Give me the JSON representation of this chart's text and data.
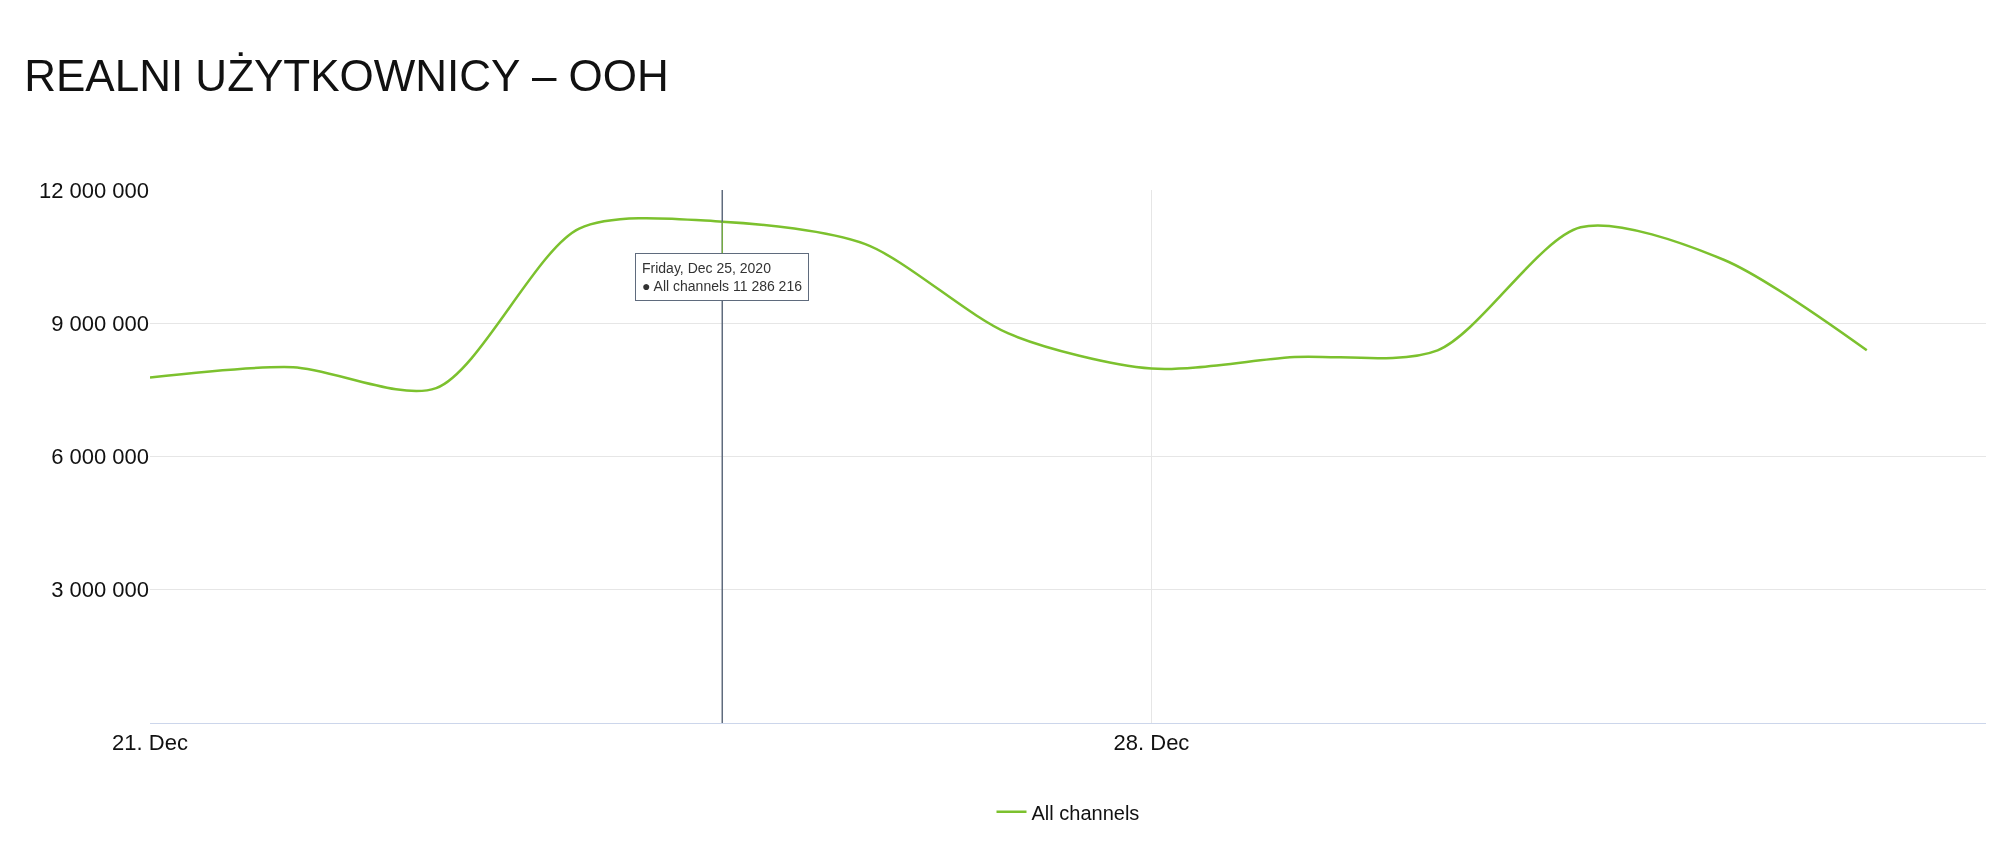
{
  "chart_data": {
    "type": "line",
    "title": "REALNI UŻYTKOWNICY – OOH",
    "x": [
      "2020-12-21",
      "2020-12-22",
      "2020-12-23",
      "2020-12-24",
      "2020-12-25",
      "2020-12-26",
      "2020-12-27",
      "2020-12-28",
      "2020-12-29",
      "2020-12-30",
      "2020-12-31",
      "2021-01-01",
      "2021-01-02"
    ],
    "series": [
      {
        "name": "All channels",
        "color": "#7cc12e",
        "values": [
          7780000,
          8010000,
          7540000,
          11130000,
          11286216,
          10780000,
          8770000,
          7980000,
          8240000,
          8390000,
          11160000,
          10430000,
          8390000
        ]
      }
    ],
    "xlim": [
      "2020-12-21",
      "2021-01-02T20:00"
    ],
    "xticks": [
      {
        "value": "2020-12-21",
        "label": "21. Dec"
      },
      {
        "value": "2020-12-28",
        "label": "28. Dec"
      }
    ],
    "ylim": [
      0,
      12000000
    ],
    "yticks": [
      {
        "value": 3000000,
        "label": "3 000 000"
      },
      {
        "value": 6000000,
        "label": "6 000 000"
      },
      {
        "value": 9000000,
        "label": "9 000 000"
      },
      {
        "value": 12000000,
        "label": "12 000 000"
      }
    ],
    "ref_lines": [
      {
        "axis": "x",
        "value": "2020-12-25",
        "color": "#5f6b7d"
      }
    ],
    "annotations": [
      {
        "text": "Friday, Dec 25, 2020\n● All channels 11 286 216",
        "x": "2020-12-25",
        "y": 11286216
      }
    ],
    "grid": true,
    "legend": "bottom",
    "marker": "none",
    "line_style": "solid"
  }
}
